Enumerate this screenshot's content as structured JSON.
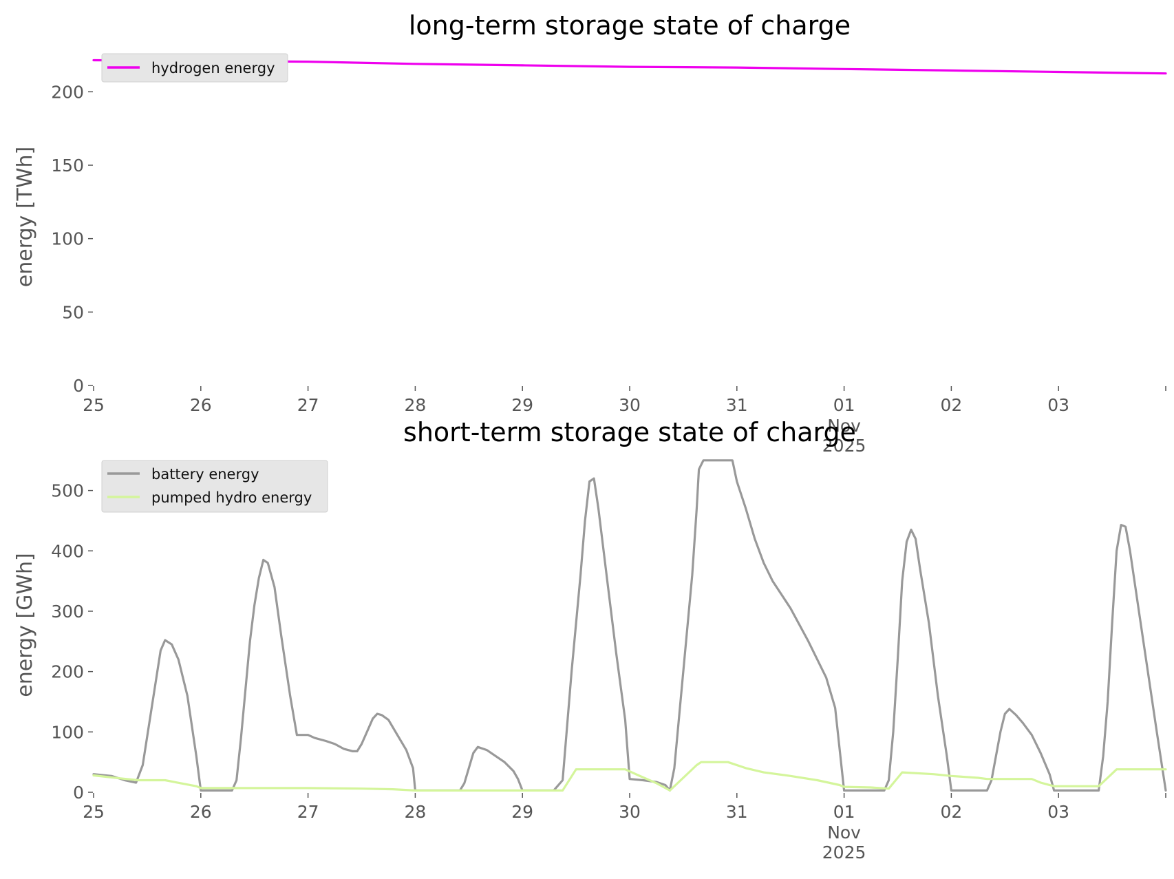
{
  "figure": {
    "colors": {
      "hydrogen": "#ee00ee",
      "battery": "#999999",
      "pumped_hydro": "#d4f59b",
      "legend_bg": "#e6e6e6",
      "tick_text": "#555555"
    }
  },
  "chart_data": [
    {
      "type": "line",
      "title": "long-term storage state of charge",
      "xlabel": "",
      "ylabel": "energy [TWh]",
      "xlim": [
        "2025-10-25",
        "2025-11-04"
      ],
      "ylim": [
        0,
        225
      ],
      "x_ticks": [
        "25",
        "26",
        "27",
        "28",
        "29",
        "30",
        "31",
        "01",
        "02",
        "03",
        ""
      ],
      "x_tick_month": "Nov",
      "x_tick_year": "2025",
      "y_ticks": [
        "0",
        "50",
        "100",
        "150",
        "200"
      ],
      "y_tick_values": [
        0,
        50,
        100,
        150,
        200
      ],
      "grid": false,
      "legend_position": "top-left",
      "series": [
        {
          "name": "hydrogen energy",
          "color": "#ee00ee",
          "points": [
            [
              "2025-10-25",
              221.5
            ],
            [
              "2025-10-26",
              221
            ],
            [
              "2025-10-27",
              220.5
            ],
            [
              "2025-10-28",
              219
            ],
            [
              "2025-10-29",
              218
            ],
            [
              "2025-10-30",
              217
            ],
            [
              "2025-10-31",
              216.5
            ],
            [
              "2025-11-01",
              215.5
            ],
            [
              "2025-11-02",
              214.5
            ],
            [
              "2025-11-03",
              213.5
            ],
            [
              "2025-11-04",
              212.5
            ]
          ]
        }
      ]
    },
    {
      "type": "line",
      "title": "short-term storage state of charge",
      "xlabel": "",
      "ylabel": "energy [GWh]",
      "xlim": [
        "2025-10-25",
        "2025-11-04"
      ],
      "ylim": [
        0,
        560
      ],
      "x_ticks": [
        "25",
        "26",
        "27",
        "28",
        "29",
        "30",
        "31",
        "01",
        "02",
        "03",
        ""
      ],
      "x_tick_month": "Nov",
      "x_tick_year": "2025",
      "y_ticks": [
        "0",
        "100",
        "200",
        "300",
        "400",
        "500"
      ],
      "y_tick_values": [
        0,
        100,
        200,
        300,
        400,
        500
      ],
      "grid": false,
      "legend_position": "top-left",
      "series": [
        {
          "name": "battery energy",
          "color": "#999999",
          "points": [
            [
              "2025-10-25 00:00",
              30
            ],
            [
              "2025-10-25 04:00",
              27
            ],
            [
              "2025-10-25 07:00",
              20
            ],
            [
              "2025-10-25 09:30",
              16
            ],
            [
              "2025-10-25 11:00",
              45
            ],
            [
              "2025-10-25 13:00",
              140
            ],
            [
              "2025-10-25 15:00",
              235
            ],
            [
              "2025-10-25 16:00",
              252
            ],
            [
              "2025-10-25 17:30",
              245
            ],
            [
              "2025-10-25 19:00",
              220
            ],
            [
              "2025-10-25 21:00",
              160
            ],
            [
              "2025-10-25 23:00",
              60
            ],
            [
              "2025-10-26 00:00",
              3
            ],
            [
              "2025-10-26 07:00",
              3
            ],
            [
              "2025-10-26 08:00",
              20
            ],
            [
              "2025-10-26 09:00",
              90
            ],
            [
              "2025-10-26 10:00",
              170
            ],
            [
              "2025-10-26 11:00",
              250
            ],
            [
              "2025-10-26 12:00",
              310
            ],
            [
              "2025-10-26 13:00",
              355
            ],
            [
              "2025-10-26 14:00",
              385
            ],
            [
              "2025-10-26 15:00",
              380
            ],
            [
              "2025-10-26 16:30",
              340
            ],
            [
              "2025-10-26 18:00",
              260
            ],
            [
              "2025-10-26 20:00",
              160
            ],
            [
              "2025-10-26 21:30",
              95
            ],
            [
              "2025-10-26 23:00",
              95
            ],
            [
              "2025-10-27 00:00",
              95
            ],
            [
              "2025-10-27 01:30",
              90
            ],
            [
              "2025-10-27 04:00",
              85
            ],
            [
              "2025-10-27 06:00",
              80
            ],
            [
              "2025-10-27 08:00",
              72
            ],
            [
              "2025-10-27 10:00",
              68
            ],
            [
              "2025-10-27 11:00",
              68
            ],
            [
              "2025-10-27 12:00",
              80
            ],
            [
              "2025-10-27 13:30",
              105
            ],
            [
              "2025-10-27 14:30",
              122
            ],
            [
              "2025-10-27 15:30",
              130
            ],
            [
              "2025-10-27 16:30",
              128
            ],
            [
              "2025-10-27 18:00",
              120
            ],
            [
              "2025-10-27 20:00",
              95
            ],
            [
              "2025-10-27 22:00",
              70
            ],
            [
              "2025-10-27 23:30",
              40
            ],
            [
              "2025-10-28 00:00",
              3
            ],
            [
              "2025-10-28 10:00",
              3
            ],
            [
              "2025-10-28 11:00",
              15
            ],
            [
              "2025-10-28 13:00",
              65
            ],
            [
              "2025-10-28 14:00",
              75
            ],
            [
              "2025-10-28 16:00",
              70
            ],
            [
              "2025-10-28 18:00",
              60
            ],
            [
              "2025-10-28 20:00",
              50
            ],
            [
              "2025-10-28 22:00",
              35
            ],
            [
              "2025-10-28 23:00",
              22
            ],
            [
              "2025-10-29 00:00",
              3
            ],
            [
              "2025-10-29 07:00",
              3
            ],
            [
              "2025-10-29 09:00",
              20
            ],
            [
              "2025-10-29 11:00",
              200
            ],
            [
              "2025-10-29 13:00",
              360
            ],
            [
              "2025-10-29 14:00",
              450
            ],
            [
              "2025-10-29 15:00",
              515
            ],
            [
              "2025-10-29 16:00",
              520
            ],
            [
              "2025-10-29 17:00",
              470
            ],
            [
              "2025-10-29 19:00",
              350
            ],
            [
              "2025-10-29 21:00",
              230
            ],
            [
              "2025-10-29 23:00",
              120
            ],
            [
              "2025-10-30 00:00",
              22
            ],
            [
              "2025-10-30 03:00",
              20
            ],
            [
              "2025-10-30 06:00",
              17
            ],
            [
              "2025-10-30 08:00",
              12
            ],
            [
              "2025-10-30 09:00",
              3
            ],
            [
              "2025-10-30 10:00",
              40
            ],
            [
              "2025-10-30 11:00",
              120
            ],
            [
              "2025-10-30 12:00",
              200
            ],
            [
              "2025-10-30 13:00",
              280
            ],
            [
              "2025-10-30 14:00",
              360
            ],
            [
              "2025-10-30 15:00",
              470
            ],
            [
              "2025-10-30 15:30",
              535
            ],
            [
              "2025-10-30 16:30",
              550
            ],
            [
              "2025-10-30 17:00",
              550
            ],
            [
              "2025-10-30 23:00",
              550
            ],
            [
              "2025-10-31 00:00",
              515
            ],
            [
              "2025-10-31 02:00",
              470
            ],
            [
              "2025-10-31 04:00",
              420
            ],
            [
              "2025-10-31 06:00",
              380
            ],
            [
              "2025-10-31 08:00",
              350
            ],
            [
              "2025-10-31 12:00",
              305
            ],
            [
              "2025-10-31 16:00",
              250
            ],
            [
              "2025-10-31 20:00",
              190
            ],
            [
              "2025-10-31 22:00",
              140
            ],
            [
              "2025-11-01 00:00",
              3
            ],
            [
              "2025-11-01 09:00",
              3
            ],
            [
              "2025-11-01 10:00",
              20
            ],
            [
              "2025-11-01 11:00",
              100
            ],
            [
              "2025-11-01 12:00",
              220
            ],
            [
              "2025-11-01 13:00",
              350
            ],
            [
              "2025-11-01 14:00",
              415
            ],
            [
              "2025-11-01 15:00",
              435
            ],
            [
              "2025-11-01 16:00",
              420
            ],
            [
              "2025-11-01 17:00",
              370
            ],
            [
              "2025-11-01 19:00",
              280
            ],
            [
              "2025-11-01 21:00",
              160
            ],
            [
              "2025-11-01 23:00",
              60
            ],
            [
              "2025-11-02 00:00",
              3
            ],
            [
              "2025-11-02 08:00",
              3
            ],
            [
              "2025-11-02 09:00",
              20
            ],
            [
              "2025-11-02 10:00",
              60
            ],
            [
              "2025-11-02 11:00",
              100
            ],
            [
              "2025-11-02 12:00",
              130
            ],
            [
              "2025-11-02 13:00",
              138
            ],
            [
              "2025-11-02 14:30",
              128
            ],
            [
              "2025-11-02 16:00",
              115
            ],
            [
              "2025-11-02 18:00",
              95
            ],
            [
              "2025-11-02 20:00",
              65
            ],
            [
              "2025-11-02 22:00",
              30
            ],
            [
              "2025-11-02 23:00",
              3
            ],
            [
              "2025-11-03 00:00",
              3
            ],
            [
              "2025-11-03 09:00",
              3
            ],
            [
              "2025-11-03 10:00",
              60
            ],
            [
              "2025-11-03 11:00",
              150
            ],
            [
              "2025-11-03 12:00",
              280
            ],
            [
              "2025-11-03 13:00",
              400
            ],
            [
              "2025-11-03 14:00",
              443
            ],
            [
              "2025-11-03 15:00",
              440
            ],
            [
              "2025-11-03 16:00",
              400
            ],
            [
              "2025-11-03 18:00",
              300
            ],
            [
              "2025-11-03 20:00",
              200
            ],
            [
              "2025-11-03 22:00",
              100
            ],
            [
              "2025-11-04 00:00",
              3
            ]
          ]
        },
        {
          "name": "pumped hydro energy",
          "color": "#d4f59b",
          "points": [
            [
              "2025-10-25 00:00",
              28
            ],
            [
              "2025-10-25 06:00",
              23
            ],
            [
              "2025-10-25 10:00",
              20
            ],
            [
              "2025-10-25 16:00",
              20
            ],
            [
              "2025-10-25 23:00",
              10
            ],
            [
              "2025-10-26 00:00",
              7
            ],
            [
              "2025-10-27 00:00",
              7
            ],
            [
              "2025-10-27 12:00",
              6
            ],
            [
              "2025-10-27 19:00",
              5
            ],
            [
              "2025-10-28 00:00",
              3
            ],
            [
              "2025-10-29 09:00",
              3
            ],
            [
              "2025-10-29 12:00",
              38
            ],
            [
              "2025-10-29 23:00",
              38
            ],
            [
              "2025-10-30 02:00",
              28
            ],
            [
              "2025-10-30 06:00",
              15
            ],
            [
              "2025-10-30 09:00",
              3
            ],
            [
              "2025-10-30 15:00",
              45
            ],
            [
              "2025-10-30 16:00",
              50
            ],
            [
              "2025-10-30 22:00",
              50
            ],
            [
              "2025-10-31 02:00",
              40
            ],
            [
              "2025-10-31 06:00",
              33
            ],
            [
              "2025-10-31 12:00",
              27
            ],
            [
              "2025-10-31 18:00",
              20
            ],
            [
              "2025-10-31 23:00",
              12
            ],
            [
              "2025-11-01 00:00",
              9
            ],
            [
              "2025-11-01 06:00",
              8
            ],
            [
              "2025-11-01 10:00",
              6
            ],
            [
              "2025-11-01 13:00",
              33
            ],
            [
              "2025-11-01 20:00",
              30
            ],
            [
              "2025-11-02 00:00",
              27
            ],
            [
              "2025-11-02 06:00",
              24
            ],
            [
              "2025-11-02 08:00",
              22
            ],
            [
              "2025-11-02 18:00",
              22
            ],
            [
              "2025-11-02 20:00",
              16
            ],
            [
              "2025-11-02 23:00",
              10
            ],
            [
              "2025-11-03 00:00",
              10
            ],
            [
              "2025-11-03 09:00",
              10
            ],
            [
              "2025-11-03 13:00",
              38
            ],
            [
              "2025-11-04 00:00",
              38
            ]
          ]
        }
      ]
    }
  ]
}
